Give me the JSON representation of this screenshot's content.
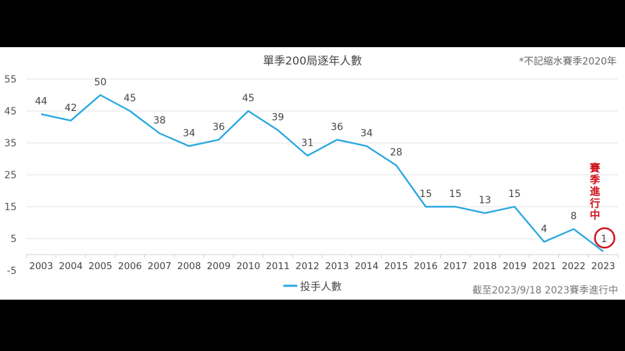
{
  "chart_data": {
    "type": "line",
    "title": "單季200局逐年人數",
    "note": "*不記縮水賽季2020年",
    "footnote": "截至2023/9/18  2023賽季進行中",
    "annotation": "賽季進行中",
    "categories": [
      "2003",
      "2004",
      "2005",
      "2006",
      "2007",
      "2008",
      "2009",
      "2010",
      "2011",
      "2012",
      "2013",
      "2014",
      "2015",
      "2016",
      "2017",
      "2018",
      "2019",
      "2021",
      "2022",
      "2023"
    ],
    "series": [
      {
        "name": "投手人數",
        "values": [
          44,
          42,
          50,
          45,
          38,
          34,
          36,
          45,
          39,
          31,
          36,
          34,
          28,
          15,
          15,
          13,
          15,
          4,
          8,
          1
        ]
      }
    ],
    "yticks": [
      55,
      45,
      35,
      25,
      15,
      5,
      -5
    ],
    "ylim": [
      -5,
      55
    ],
    "grid": true,
    "legend": "bottom",
    "colors": {
      "line": "#29a8e0",
      "annotation": "#d0121b"
    }
  }
}
